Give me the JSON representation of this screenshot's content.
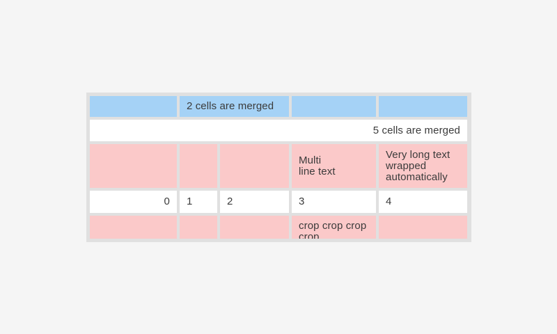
{
  "colors": {
    "bg": "#f5f5f5",
    "panel": "#e0e0e0",
    "blue": "#a5d2f6",
    "pink": "#fbc9c9",
    "white": "#ffffff",
    "text": "#3b3b3b"
  },
  "table": {
    "row1": {
      "c1": "",
      "merged": "2 cells are merged",
      "c4": "",
      "c5": ""
    },
    "row2": {
      "merged": "5 cells are merged"
    },
    "row3": {
      "c1": "",
      "c2": "",
      "c3": "",
      "c4": "Multi\nline text",
      "c5": "Very long text wrapped automatically"
    },
    "row4": {
      "c1": "0",
      "c2": "1",
      "c3": "2",
      "c4": "3",
      "c5": "4"
    },
    "row5": {
      "c1": "",
      "c2": "",
      "c3": "",
      "c4": "crop crop crop crop",
      "c5": ""
    }
  }
}
